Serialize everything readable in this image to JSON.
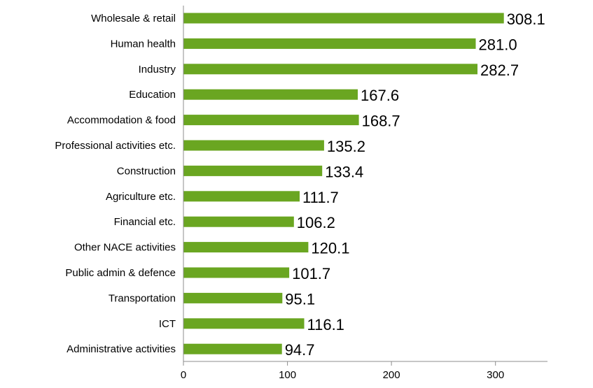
{
  "chart_data": {
    "type": "bar",
    "orientation": "horizontal",
    "title": "",
    "xlabel": "",
    "ylabel": "",
    "categories": [
      "Wholesale & retail",
      "Human health",
      "Industry",
      "Education",
      "Accommodation & food",
      "Professional activities etc.",
      "Construction",
      "Agriculture etc.",
      "Financial etc.",
      "Other NACE activities",
      "Public admin & defence",
      "Transportation",
      "ICT",
      "Administrative activities"
    ],
    "values": [
      308.1,
      281.0,
      282.7,
      167.6,
      168.7,
      135.2,
      133.4,
      111.7,
      106.2,
      120.1,
      101.7,
      95.1,
      116.1,
      94.7
    ],
    "value_labels": [
      "308.1",
      "281.0",
      "282.7",
      "167.6",
      "168.7",
      "135.2",
      "133.4",
      "111.7",
      "106.2",
      "120.1",
      "101.7",
      "95.1",
      "116.1",
      "94.7"
    ],
    "xlim": [
      0,
      350
    ],
    "xticks": [
      0,
      100,
      200,
      300
    ],
    "xtick_labels": [
      "0",
      "100",
      "200",
      "300"
    ],
    "grid": false,
    "legend": "none",
    "bar_color": "#6aa621"
  }
}
